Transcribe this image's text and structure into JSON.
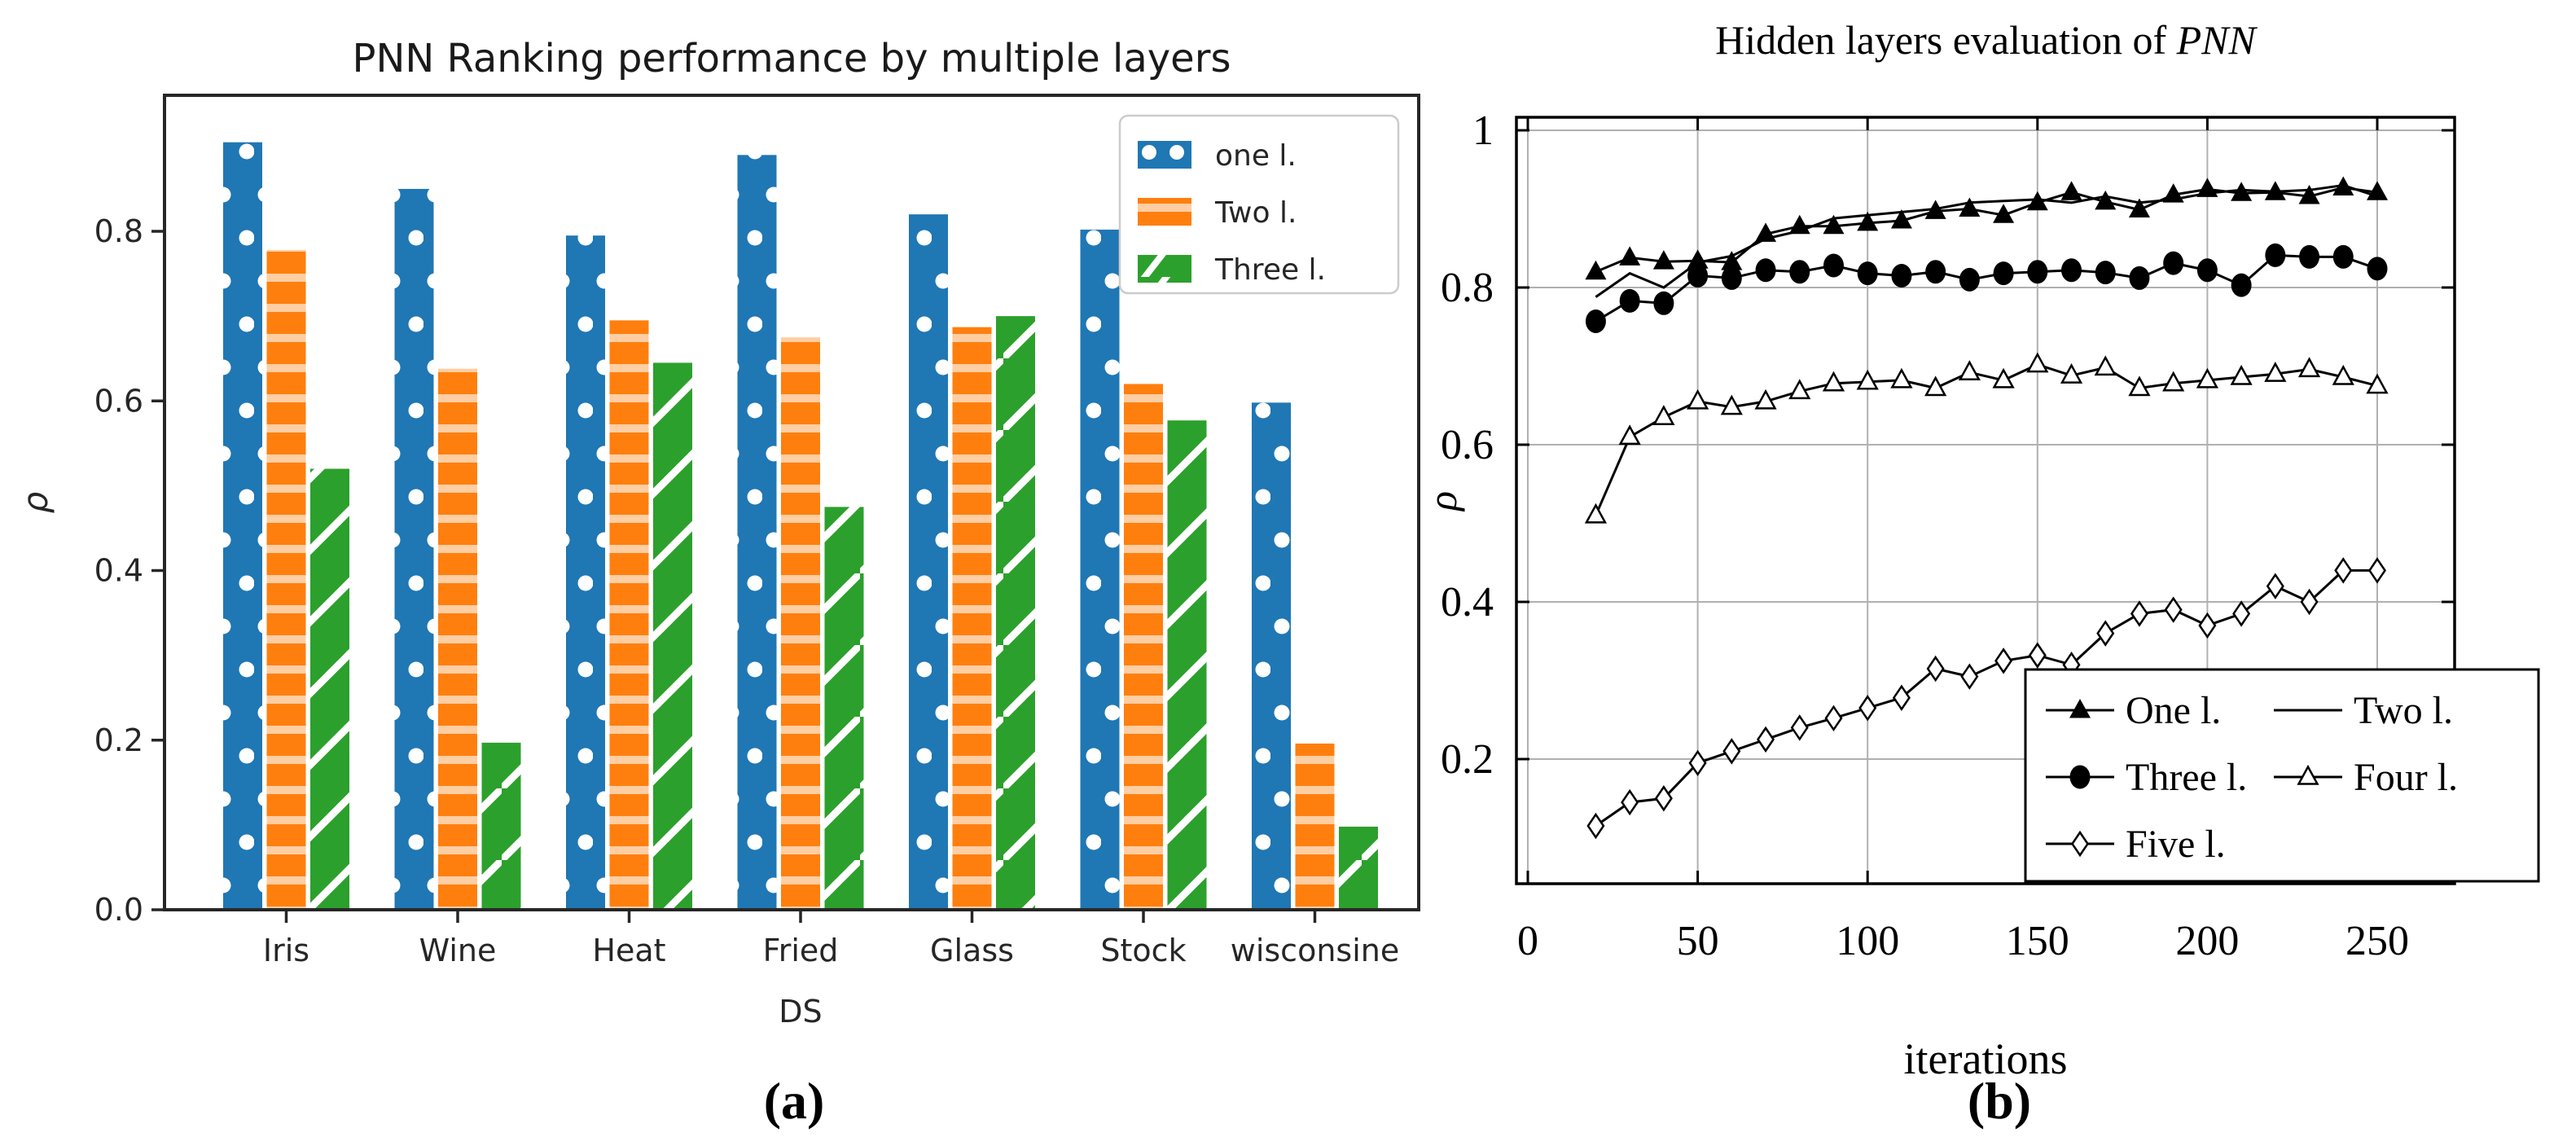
{
  "figure": {
    "background": "#ffffff",
    "captions": {
      "a": "(a)",
      "b": "(b)"
    }
  },
  "chart_data": [
    {
      "type": "bar",
      "panel": "a",
      "title": "PNN Ranking performance by multiple layers",
      "xlabel": "DS",
      "ylabel": "ρ",
      "categories": [
        "Iris",
        "Wine",
        "Heat",
        "Fried",
        "Glass",
        "Stock",
        "wisconsine"
      ],
      "ytick_labels": [
        "0.0",
        "0.2",
        "0.4",
        "0.6",
        "0.8"
      ],
      "yticks": [
        0.0,
        0.2,
        0.4,
        0.6,
        0.8
      ],
      "ylim": [
        0,
        0.96
      ],
      "grid": false,
      "legend_position": "upper right",
      "text_color": "#262626",
      "series": [
        {
          "name": "one l.",
          "color": "#1f77b4",
          "hatch": "dots",
          "values": [
            0.905,
            0.85,
            0.795,
            0.89,
            0.82,
            0.802,
            0.598
          ]
        },
        {
          "name": "Two l.",
          "color": "#ff7f0e",
          "hatch": "hlines",
          "values": [
            0.778,
            0.638,
            0.695,
            0.675,
            0.687,
            0.62,
            0.196
          ]
        },
        {
          "name": "Three l.",
          "color": "#2ca02c",
          "hatch": "slash",
          "values": [
            0.52,
            0.197,
            0.645,
            0.475,
            0.7,
            0.577,
            0.098
          ]
        }
      ]
    },
    {
      "type": "line",
      "panel": "b",
      "title": "Hidden layers evaluation of PNN",
      "title_parts": {
        "prefix": "Hidden layers evaluation of ",
        "italic": "PNN"
      },
      "xlabel": "iterations",
      "ylabel": "ρ",
      "xtick_labels": [
        "0",
        "50",
        "100",
        "150",
        "200",
        "250"
      ],
      "xticks": [
        0,
        50,
        100,
        150,
        200,
        250
      ],
      "ytick_labels": [
        "0.2",
        "0.4",
        "0.6",
        "0.8",
        "1"
      ],
      "yticks": [
        0.2,
        0.4,
        0.6,
        0.8,
        1.0
      ],
      "xlim": [
        -3.5,
        273
      ],
      "ylim": [
        0.041,
        1.017
      ],
      "grid": true,
      "grid_color": "#b0b0b0",
      "line_color": "#000000",
      "legend_position": "lower right",
      "legend_columns": 2,
      "x": [
        20,
        30,
        40,
        50,
        60,
        70,
        80,
        90,
        100,
        110,
        120,
        130,
        140,
        150,
        160,
        170,
        180,
        190,
        200,
        210,
        220,
        230,
        240,
        250
      ],
      "series": [
        {
          "name": "One l.",
          "marker": "triangle-filled",
          "values": [
            0.82,
            0.838,
            0.833,
            0.834,
            0.832,
            0.868,
            0.878,
            0.878,
            0.882,
            0.885,
            0.897,
            0.9,
            0.892,
            0.908,
            0.921,
            0.909,
            0.899,
            0.918,
            0.925,
            0.92,
            0.921,
            0.916,
            0.927,
            0.921
          ]
        },
        {
          "name": "Two l.",
          "marker": "none",
          "values": [
            0.788,
            0.818,
            0.8,
            0.832,
            0.84,
            0.862,
            0.872,
            0.888,
            0.892,
            0.896,
            0.9,
            0.908,
            0.91,
            0.912,
            0.908,
            0.916,
            0.908,
            0.912,
            0.92,
            0.924,
            0.922,
            0.924,
            0.93,
            0.916
          ]
        },
        {
          "name": "Three l.",
          "marker": "circle-filled",
          "values": [
            0.757,
            0.783,
            0.78,
            0.815,
            0.812,
            0.822,
            0.82,
            0.828,
            0.818,
            0.815,
            0.82,
            0.81,
            0.818,
            0.82,
            0.822,
            0.819,
            0.812,
            0.831,
            0.822,
            0.803,
            0.841,
            0.839,
            0.839,
            0.824
          ]
        },
        {
          "name": "Four l.",
          "marker": "triangle-open",
          "values": [
            0.51,
            0.61,
            0.635,
            0.655,
            0.648,
            0.655,
            0.668,
            0.678,
            0.68,
            0.682,
            0.672,
            0.692,
            0.682,
            0.702,
            0.688,
            0.698,
            0.672,
            0.678,
            0.682,
            0.686,
            0.69,
            0.696,
            0.686,
            0.675
          ]
        },
        {
          "name": "Five l.",
          "marker": "diamond-open",
          "values": [
            0.115,
            0.145,
            0.15,
            0.195,
            0.21,
            0.225,
            0.24,
            0.252,
            0.265,
            0.278,
            0.315,
            0.305,
            0.325,
            0.332,
            0.32,
            0.36,
            0.385,
            0.39,
            0.37,
            0.385,
            0.42,
            0.4,
            0.44,
            0.44
          ]
        }
      ]
    }
  ]
}
